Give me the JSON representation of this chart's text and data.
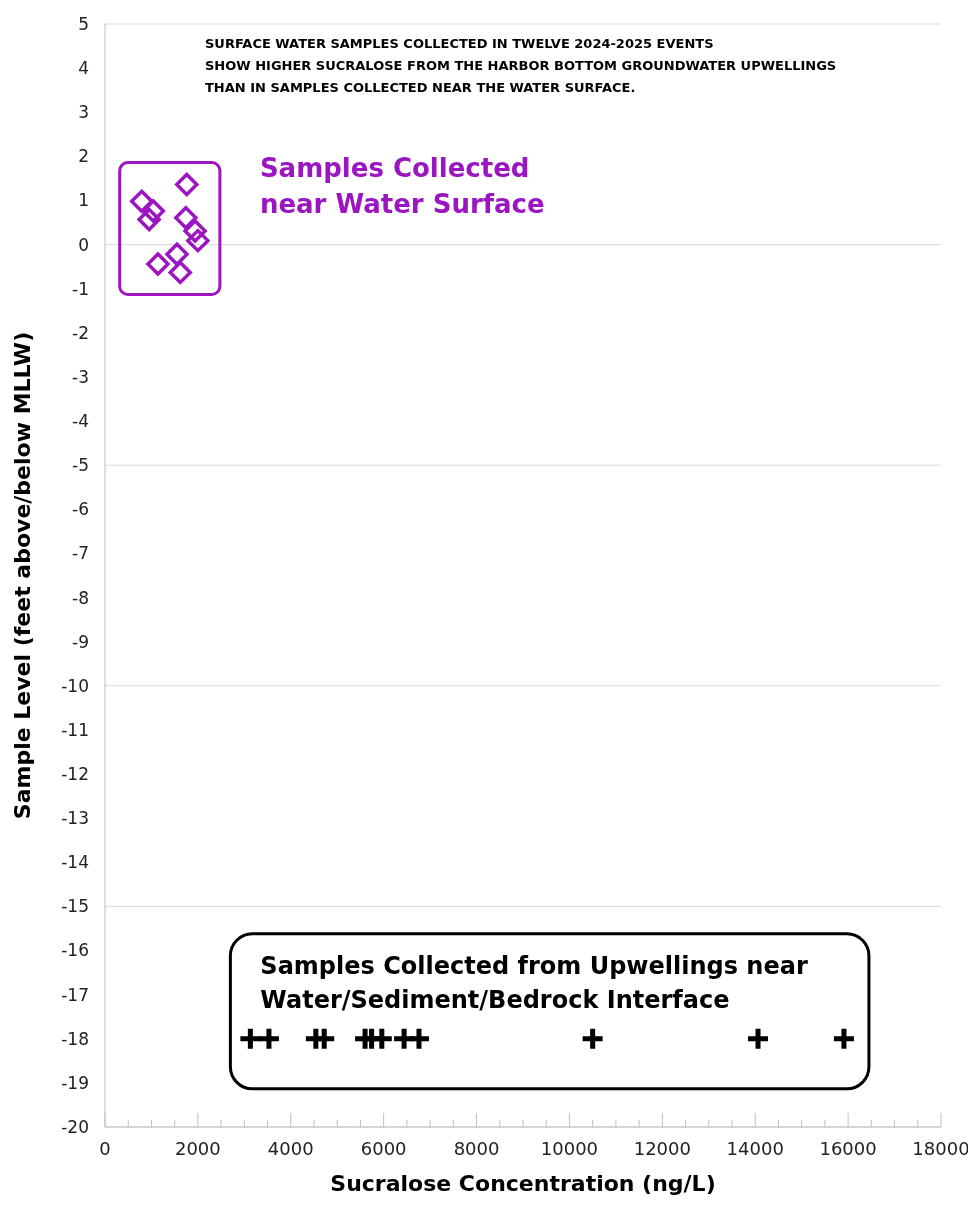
{
  "chart_data": {
    "type": "scatter",
    "title": "SURFACE WATER SAMPLES COLLECTED IN TWELVE 2024-2025 EVENTS\nSHOW HIGHER SUCRALOSE FROM THE HARBOR BOTTOM GROUNDWATER UPWELLINGS\nTHAN IN SAMPLES COLLECTED NEAR THE WATER SURFACE.",
    "xlabel": "Sucralose Concentration (ng/L)",
    "ylabel": "Sample Level (feet above/below MLLW)",
    "xlim": [
      0,
      18000
    ],
    "ylim": [
      -20,
      5
    ],
    "xticks": [
      0,
      {
        "value": 500,
        "label": null
      },
      2000,
      {
        "value": 1000,
        "label": null
      },
      {
        "value": 1500,
        "label": null
      },
      {
        "value": 2500,
        "label": null
      },
      {
        "value": 3000,
        "label": null
      },
      {
        "value": 3500,
        "label": null
      },
      4000,
      {
        "value": 4500,
        "label": null
      },
      {
        "value": 5000,
        "label": null
      },
      {
        "value": 5500,
        "label": null
      },
      6000,
      {
        "value": 6500,
        "label": null
      },
      {
        "value": 7000,
        "label": null
      },
      {
        "value": 7500,
        "label": null
      },
      8000,
      {
        "value": 8500,
        "label": null
      },
      {
        "value": 9000,
        "label": null
      },
      {
        "value": 9500,
        "label": null
      },
      10000,
      {
        "value": 10500,
        "label": null
      },
      {
        "value": 11000,
        "label": null
      },
      {
        "value": 11500,
        "label": null
      },
      12000,
      {
        "value": 12500,
        "label": null
      },
      {
        "value": 13000,
        "label": null
      },
      {
        "value": 13500,
        "label": null
      },
      14000,
      {
        "value": 14500,
        "label": null
      },
      {
        "value": 15000,
        "label": null
      },
      {
        "value": 15500,
        "label": null
      },
      16000,
      {
        "value": 16500,
        "label": null
      },
      {
        "value": 17000,
        "label": null
      },
      {
        "value": 17500,
        "label": null
      },
      18000
    ],
    "yticks": [
      5,
      4,
      3,
      2,
      1,
      0,
      -1,
      -2,
      -3,
      -4,
      -5,
      -6,
      -7,
      -8,
      -9,
      -10,
      -11,
      -12,
      -13,
      -14,
      -15,
      -16,
      -17,
      -18,
      -19,
      -20
    ],
    "grid": "y",
    "series": [
      {
        "name": "Samples Collected near Water Surface",
        "color": "#9b16c0",
        "marker": "diamond",
        "x": [
          790,
          1040,
          950,
          1760,
          1740,
          1940,
          2000,
          1550,
          1140,
          1620
        ],
        "values": [
          0.98,
          0.76,
          0.57,
          1.36,
          0.61,
          0.31,
          0.09,
          -0.22,
          -0.44,
          -0.63
        ]
      },
      {
        "name": "Samples Collected from Upwellings near Water/Sediment/Bedrock Interface",
        "color": "#000000",
        "marker": "cross",
        "x": [
          3130,
          3530,
          4540,
          4720,
          5600,
          5740,
          5960,
          6440,
          6760,
          10500,
          14060,
          15910
        ],
        "values": [
          -18,
          -18,
          -18,
          -18,
          -18,
          -18,
          -18,
          -18,
          -18,
          -18,
          -18,
          -18
        ]
      }
    ]
  }
}
